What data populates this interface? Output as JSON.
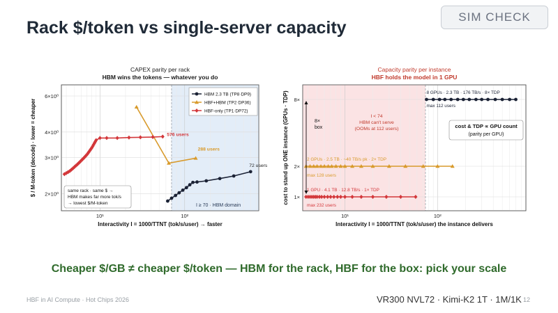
{
  "slide": {
    "title": "Rack $/token  vs  single-server capacity",
    "badge": "SIM CHECK",
    "takeaway": "Cheaper $/GB ≠ cheaper $/token — HBM for the rack, HBF for the box: pick your scale",
    "footer_left": "HBF in AI Compute · Hot Chips 2026",
    "footer_right": "VR300 NVL72 · Kimi-K2 1T · 1M/1K",
    "page_number": "12"
  },
  "chart_data": [
    {
      "type": "line",
      "title": "CAPEX parity per rack",
      "subtitle": "HBM wins the tokens — whatever you do",
      "xlabel": "Interactivity  I = 1000/TTNT  (tok/s/user)  → faster",
      "ylabel": "$ / M-token (decode)  ·  lower = cheaper",
      "x_scale": "log",
      "y_scale": "log",
      "xlim": [
        3.5,
        750
      ],
      "ylim": [
        1.65,
        6.8
      ],
      "x_ticks": [
        {
          "value": 10,
          "label": "10¹"
        },
        {
          "value": 100,
          "label": "10²"
        }
      ],
      "y_ticks": [
        {
          "value": 2,
          "label": "2×10⁰"
        },
        {
          "value": 3,
          "label": "3×10⁰"
        },
        {
          "value": 4,
          "label": "4×10⁰"
        },
        {
          "value": 6,
          "label": "6×10⁰"
        }
      ],
      "legend_position": "top-right",
      "shaded_region": {
        "x_from": 70,
        "x_to": 750,
        "color": "#e3edf8",
        "label": "I ≥ 70 · HBM domain"
      },
      "series": [
        {
          "name": "HBM 2.3 TB (TP8·DP9)",
          "color": "#1b2235",
          "marker": "circle",
          "end_label": "72 users",
          "x": [
            63,
            70,
            78,
            86,
            95,
            105,
            115,
            125,
            140,
            180,
            260,
            380,
            600
          ],
          "y": [
            1.84,
            1.9,
            1.96,
            2.02,
            2.08,
            2.14,
            2.21,
            2.27,
            2.28,
            2.31,
            2.37,
            2.44,
            2.56
          ]
        },
        {
          "name": "HBF+HBM (TP2·DP36)",
          "color": "#d89a2b",
          "marker": "triangle",
          "end_label": "288 users",
          "x": [
            27,
            65,
            135
          ],
          "y": [
            5.3,
            2.82,
            2.98
          ]
        },
        {
          "name": "HBF-only (TP1·DP72)",
          "color": "#d3373a",
          "marker": "diamond",
          "end_label": "576 users",
          "x": [
            3.8,
            4.0,
            4.2,
            4.4,
            4.6,
            4.8,
            5.0,
            5.2,
            5.4,
            5.6,
            5.8,
            6.0,
            6.2,
            6.4,
            6.6,
            6.8,
            7.0,
            7.2,
            7.4,
            7.6,
            7.8,
            8.0,
            8.2,
            8.4,
            8.6,
            8.8,
            9.0,
            10,
            12,
            16,
            22,
            30,
            42,
            55
          ],
          "y": [
            2.49,
            2.52,
            2.55,
            2.58,
            2.62,
            2.66,
            2.7,
            2.74,
            2.78,
            2.82,
            2.86,
            2.9,
            2.94,
            2.98,
            3.02,
            3.06,
            3.1,
            3.15,
            3.2,
            3.25,
            3.3,
            3.35,
            3.41,
            3.47,
            3.53,
            3.59,
            3.65,
            3.74,
            3.74,
            3.74,
            3.76,
            3.77,
            3.78,
            3.8
          ]
        }
      ],
      "annotations": [
        "same rack · same $ →",
        "HBM makes far more tok/s",
        "→ lowest $/M-token"
      ]
    },
    {
      "type": "line",
      "title": "Capacity parity per instance",
      "subtitle": "HBF holds the model in 1 GPU",
      "xlabel": "Interactivity  I = 1000/TTNT  (tok/s/user) the instance delivers",
      "ylabel": "cost to stand up ONE instance  (GPUs · TDP)",
      "x_scale": "log",
      "xlim": [
        3.5,
        900
      ],
      "ylim": [
        0.7,
        8.8
      ],
      "x_ticks": [
        {
          "value": 10,
          "label": "10¹"
        },
        {
          "value": 100,
          "label": "10²"
        }
      ],
      "y_ticks": [
        {
          "value": 1,
          "label": "1×"
        },
        {
          "value": 2,
          "label": "2×"
        },
        {
          "value": 8,
          "label": "8×"
        }
      ],
      "shaded_region": {
        "x_from": 3.5,
        "x_to": 74,
        "color": "#fbe3e4",
        "label": "I < 74: HBM can't serve (OOMs at 112 users)"
      },
      "gap_annotation": "8× box",
      "callout": [
        "cost & TDP  ∝  GPU count",
        "(parity per GPU)"
      ],
      "series": [
        {
          "name": "8 GPUs · 2.3 TB · 176 TB/s · 8× TDP",
          "note": "max 112 users",
          "color": "#1b2235",
          "marker": "circle",
          "x": [
            76,
            90,
            105,
            120,
            140,
            165,
            190,
            220,
            260,
            300,
            350,
            420,
            500,
            600,
            700
          ],
          "y": [
            8,
            8,
            8,
            8,
            8,
            8,
            8,
            8,
            8,
            8,
            8,
            8,
            8,
            8,
            8
          ]
        },
        {
          "name": "2 GPUs · 2.5 TB · ~40 TB/s pk · 2× TDP",
          "note": "max 128 users",
          "color": "#d89a2b",
          "marker": "triangle",
          "x": [
            3.8,
            4.2,
            4.6,
            5.0,
            5.5,
            6.0,
            6.6,
            7.2,
            8,
            9,
            10,
            12,
            15,
            20,
            30,
            45,
            70,
            100,
            145
          ],
          "y": [
            2,
            2,
            2,
            2,
            2,
            2,
            2,
            2,
            2,
            2,
            2,
            2,
            2,
            2,
            2,
            2,
            2,
            2,
            2
          ]
        },
        {
          "name": "1 GPU · 4.1 TB · 12.8 TB/s · 1× TDP",
          "note": "max 232 users",
          "color": "#d3373a",
          "marker": "diamond",
          "x": [
            3.8,
            4.0,
            4.2,
            4.4,
            4.6,
            4.8,
            5.0,
            5.3,
            5.6,
            6.0,
            6.5,
            7.0,
            7.6,
            8.3,
            9,
            10,
            12,
            15,
            20,
            28,
            40,
            58
          ],
          "y": [
            1,
            1,
            1,
            1,
            1,
            1,
            1,
            1,
            1,
            1,
            1,
            1,
            1,
            1,
            1,
            1,
            1,
            1,
            1,
            1,
            1,
            1
          ]
        }
      ]
    }
  ]
}
